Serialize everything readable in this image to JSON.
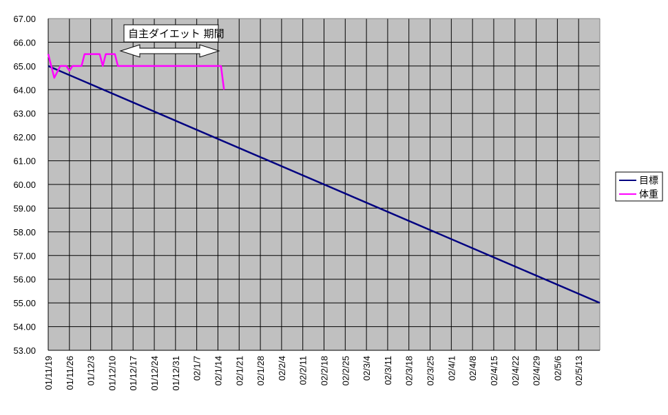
{
  "chart_data": {
    "type": "line",
    "title": "",
    "xlabel": "",
    "ylabel": "",
    "ylim": [
      53.0,
      67.0
    ],
    "y_ticks": [
      "67.00",
      "66.00",
      "65.00",
      "64.00",
      "63.00",
      "62.00",
      "61.00",
      "60.00",
      "59.00",
      "58.00",
      "57.00",
      "56.00",
      "55.00",
      "54.00",
      "53.00"
    ],
    "x_ticks": [
      "01/11/19",
      "01/11/26",
      "01/12/3",
      "01/12/10",
      "01/12/17",
      "01/12/24",
      "01/12/31",
      "02/1/7",
      "02/1/14",
      "02/1/21",
      "02/1/28",
      "02/2/4",
      "02/2/11",
      "02/2/18",
      "02/2/25",
      "02/3/4",
      "02/3/11",
      "02/3/18",
      "02/3/25",
      "02/4/1",
      "02/4/8",
      "02/4/15",
      "02/4/22",
      "02/4/29",
      "02/5/6",
      "02/5/13"
    ],
    "x_unit": "day index from 01/11/19 (ticks every 7 days)",
    "grid": true,
    "plot_background": "#c0c0c0",
    "legend_position": "right",
    "series": [
      {
        "name": "目標",
        "color": "#000080",
        "points": [
          [
            0,
            65.0
          ],
          [
            182,
            55.0
          ]
        ]
      },
      {
        "name": "体重",
        "color": "#ff00ff",
        "points": [
          [
            0,
            65.5
          ],
          [
            2,
            64.5
          ],
          [
            4,
            65.0
          ],
          [
            6,
            65.0
          ],
          [
            7,
            64.8
          ],
          [
            8,
            65.0
          ],
          [
            11,
            65.0
          ],
          [
            12,
            65.5
          ],
          [
            17,
            65.5
          ],
          [
            18,
            65.0
          ],
          [
            19,
            65.5
          ],
          [
            22,
            65.5
          ],
          [
            23,
            65.0
          ],
          [
            57,
            65.0
          ],
          [
            58,
            64.0
          ]
        ]
      }
    ],
    "annotations": [
      {
        "text": "自主ダイエット期間",
        "type": "text-box",
        "x_range_days": [
          25,
          56
        ],
        "y": 66.5
      },
      {
        "type": "double-arrow",
        "x_range_days": [
          24,
          57
        ],
        "y": 65.9
      }
    ]
  },
  "legend": {
    "items": [
      {
        "label": "目標",
        "color": "#000080"
      },
      {
        "label": "体重",
        "color": "#ff00ff"
      }
    ]
  },
  "annotation": {
    "label": "自主ダイエット 期間"
  }
}
